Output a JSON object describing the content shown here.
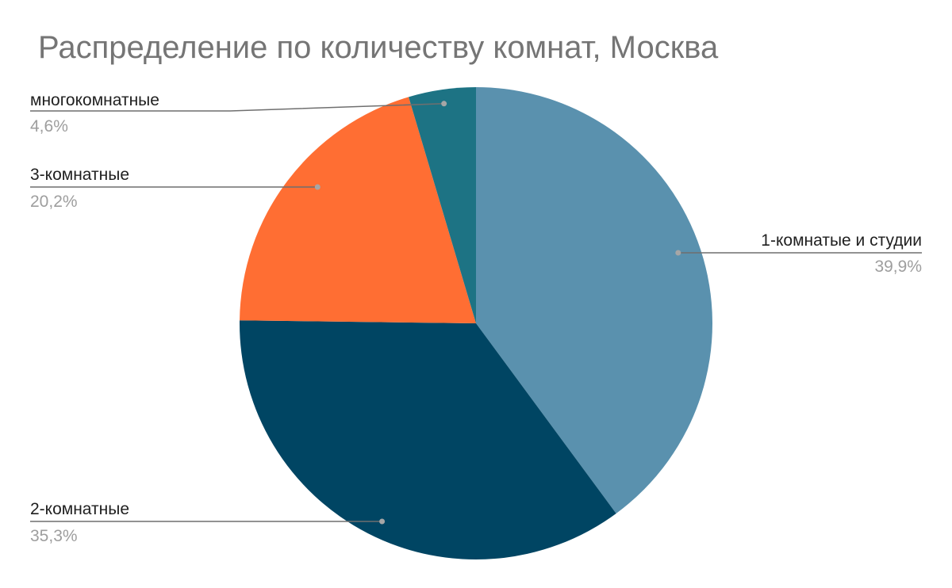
{
  "chart_data": {
    "type": "pie",
    "title": "Распределение по количеству комнат, Москва",
    "slices": [
      {
        "label": "1-комнатые и студии",
        "value": 39.9,
        "percent_label": "39,9%",
        "color": "#5a91ae"
      },
      {
        "label": "2-комнатные",
        "value": 35.3,
        "percent_label": "35,3%",
        "color": "#004563"
      },
      {
        "label": "3-комнатные",
        "value": 20.2,
        "percent_label": "20,2%",
        "color": "#ff6e33"
      },
      {
        "label": "многокомнатные",
        "value": 4.6,
        "percent_label": "4,6%",
        "color": "#1d7384"
      }
    ],
    "start_angle_deg": 0,
    "direction": "clockwise",
    "legend": "none (labels with leader lines)"
  }
}
